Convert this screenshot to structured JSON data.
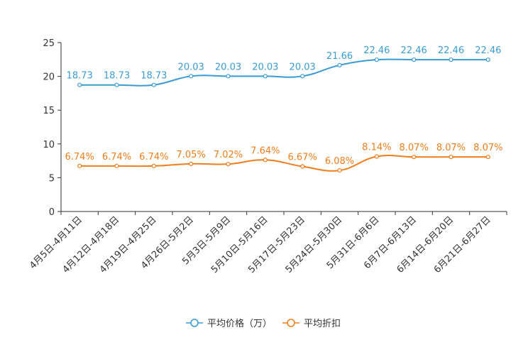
{
  "chart_data": {
    "type": "line",
    "title": "",
    "xlabel": "",
    "ylabel": "",
    "ylim": [
      0,
      25
    ],
    "yticks": [
      0,
      5,
      10,
      15,
      20,
      25
    ],
    "grid": false,
    "legend_position": "bottom",
    "categories": [
      "4月5日-4月11日",
      "4月12日-4月18日",
      "4月19日-4月25日",
      "4月26日-5月2日",
      "5月3日-5月9日",
      "5月10日-5月16日",
      "5月17日-5月23日",
      "5月24日-5月30日",
      "5月31日-6月6日",
      "6月7日-6月13日",
      "6月14日-6月20日",
      "6月21日-6月27日"
    ],
    "series": [
      {
        "name": "平均价格（万）",
        "color": "#3a9bd5",
        "values": [
          18.73,
          18.73,
          18.73,
          20.03,
          20.03,
          20.03,
          20.03,
          21.66,
          22.46,
          22.46,
          22.46,
          22.46
        ],
        "labels": [
          "18.73",
          "18.73",
          "18.73",
          "20.03",
          "20.03",
          "20.03",
          "20.03",
          "21.66",
          "22.46",
          "22.46",
          "22.46",
          "22.46"
        ]
      },
      {
        "name": "平均折扣",
        "color": "#f07d1a",
        "values": [
          6.74,
          6.74,
          6.74,
          7.05,
          7.02,
          7.64,
          6.67,
          6.08,
          8.14,
          8.07,
          8.07,
          8.07
        ],
        "labels": [
          "6.74%",
          "6.74%",
          "6.74%",
          "7.05%",
          "7.02%",
          "7.64%",
          "6.67%",
          "6.08%",
          "8.14%",
          "8.07%",
          "8.07%",
          "8.07%"
        ]
      }
    ]
  }
}
